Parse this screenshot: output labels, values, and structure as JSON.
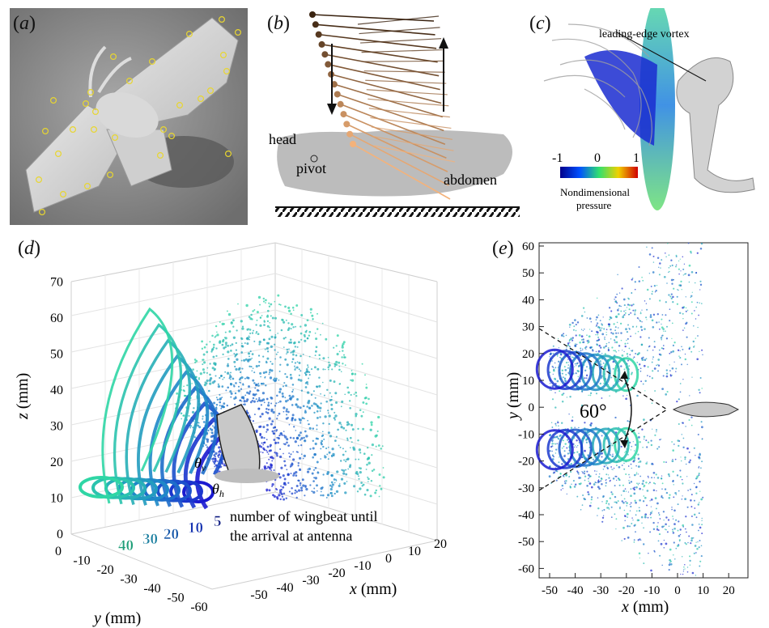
{
  "panels": {
    "a": {
      "label": "a"
    },
    "b": {
      "label": "b",
      "head": "head",
      "pivot": "pivot",
      "abdomen": "abdomen"
    },
    "c": {
      "label": "c",
      "lev": "leading-edge vortex",
      "cbar_ticks": [
        "-1",
        "0",
        "1"
      ],
      "cbar_title_1": "Nondimensional",
      "cbar_title_2": "pressure"
    },
    "d": {
      "label": "d",
      "z_label": "z",
      "z_unit": "(mm)",
      "y_label": "y",
      "y_unit": "(mm)",
      "x_label": "x",
      "x_unit": "(mm)",
      "z_ticks": [
        "0",
        "10",
        "20",
        "30",
        "40",
        "50",
        "60",
        "70"
      ],
      "y_ticks": [
        "0",
        "-10",
        "-20",
        "-30",
        "-40",
        "-50",
        "-60"
      ],
      "x_ticks": [
        "-50",
        "-40",
        "-30",
        "-20",
        "-10",
        "0",
        "10",
        "20"
      ],
      "wingbeat_numbers": [
        "40",
        "30",
        "20",
        "10",
        "5"
      ],
      "caption_line1": "number of wingbeat until",
      "caption_line2": "the arrival at antenna",
      "theta_v": "θ",
      "theta_v_sub": "v",
      "theta_h": "θ",
      "theta_h_sub": "h"
    },
    "e": {
      "label": "e",
      "y_label": "y",
      "y_unit": "(mm)",
      "x_label": "x",
      "x_unit": "(mm)",
      "angle": "60°",
      "y_ticks": [
        "60",
        "50",
        "40",
        "30",
        "20",
        "10",
        "0",
        "-10",
        "-20",
        "-30",
        "-40",
        "-50",
        "-60"
      ],
      "x_ticks": [
        "-50",
        "-40",
        "-30",
        "-20",
        "-10",
        "0",
        "10",
        "20"
      ]
    }
  },
  "colors": {
    "trail_far": "#2fd6a5",
    "trail_mid": "#1e88c8",
    "trail_near": "#1a1ad0",
    "wingbeat_40": "#1e9e78",
    "wingbeat_30": "#1b7fa0",
    "wingbeat_20": "#1456a8",
    "wingbeat_10": "#1432b0",
    "wingbeat_5": "#0c1a80"
  }
}
